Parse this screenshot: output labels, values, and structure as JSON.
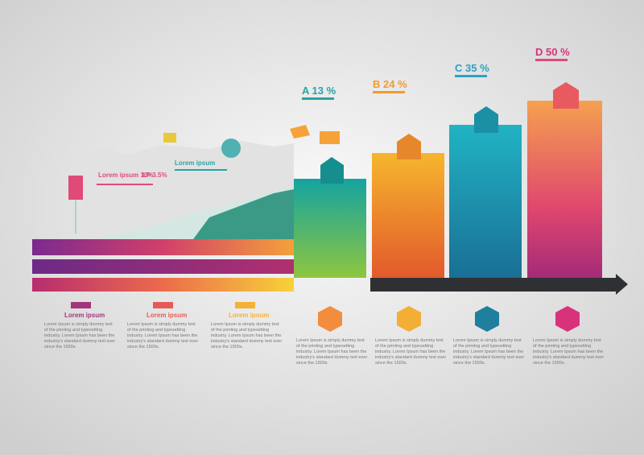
{
  "header": {
    "left_label": "Lorem ipsum 10%",
    "left_sub": "LP 3.5%",
    "mid_label": "Lorem ipsum"
  },
  "steps": [
    {
      "label": "A 13 %",
      "text": "Lorem Ipsum is simply dummy text of the printing and typesetting industry. Lorem Ipsum has been the industry's standard dummy text ever since the 1500s."
    },
    {
      "label": "B 24 %",
      "text": "Lorem Ipsum is simply dummy text of the printing and typesetting industry. Lorem Ipsum has been the industry's standard dummy text ever since the 1500s."
    },
    {
      "label": "C 35 %",
      "text": "Lorem Ipsum is simply dummy text of the printing and typesetting industry. Lorem Ipsum has been the industry's standard dummy text ever since the 1500s."
    },
    {
      "label": "D 50 %",
      "text": "Lorem Ipsum is simply dummy text of the printing and typesetting industry. Lorem Ipsum has been the industry's standard dummy text ever since the 1500s."
    }
  ],
  "ribbons": [
    {
      "label": "Lorem ipsum",
      "text": "Lorem Ipsum is simply dummy text of the printing and typesetting industry. Lorem Ipsum has been the industry's standard dummy text ever since the 1500s."
    },
    {
      "label": "Lorem ipsum",
      "text": "Lorem Ipsum is simply dummy text of the printing and typesetting industry. Lorem Ipsum has been the industry's standard dummy text ever since the 1500s."
    },
    {
      "label": "Lorem ipsum",
      "text": "Lorem Ipsum is simply dummy text of the printing and typesetting industry. Lorem Ipsum has been the industry's standard dummy text ever since the 1500s."
    }
  ]
}
